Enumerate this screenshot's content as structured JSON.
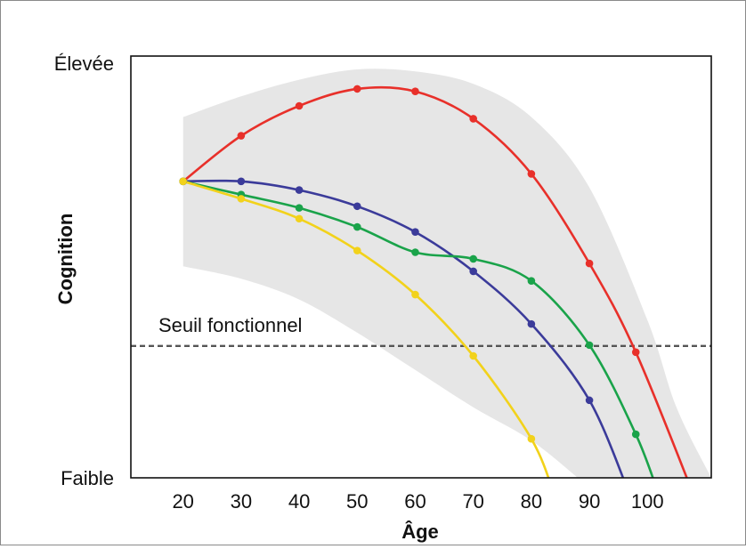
{
  "chart_data": {
    "type": "line",
    "xlabel": "Âge",
    "ylabel": "Cognition",
    "xlim": [
      11,
      111
    ],
    "ylim": [
      0,
      100
    ],
    "x_ticks": [
      20,
      30,
      40,
      50,
      60,
      70,
      80,
      90,
      100
    ],
    "x_tick_labels": [
      "20",
      "30",
      "40",
      "50",
      "60",
      "70",
      "80",
      "90",
      "100"
    ],
    "y_tick_labels": [
      "Élevée",
      "Faible"
    ],
    "y_tick_values": [
      100,
      0
    ],
    "grid": false,
    "legend": "none",
    "threshold": {
      "y": 31.8,
      "label": "Seuil fonctionnel",
      "style": "dashed",
      "color": "#555555"
    },
    "band": {
      "color": "#e6e6e6",
      "upper": [
        [
          20,
          87
        ],
        [
          30,
          92
        ],
        [
          40,
          96
        ],
        [
          50,
          98.5
        ],
        [
          60,
          98
        ],
        [
          70,
          95
        ],
        [
          80,
          87
        ],
        [
          90,
          70
        ],
        [
          100,
          38
        ],
        [
          105,
          17
        ],
        [
          111,
          0
        ]
      ],
      "lower": [
        [
          20,
          51
        ],
        [
          30,
          48
        ],
        [
          40,
          43
        ],
        [
          50,
          35
        ],
        [
          60,
          26
        ],
        [
          70,
          17
        ],
        [
          80,
          9
        ],
        [
          88,
          0
        ]
      ]
    },
    "series": [
      {
        "color": "#e8302a",
        "x": [
          20,
          30,
          40,
          50,
          60,
          70,
          80,
          90,
          98
        ],
        "y": [
          71.5,
          82.5,
          89.7,
          93.8,
          93.2,
          86.6,
          73.3,
          51.7,
          30.3
        ],
        "tail": [
          108,
          0
        ]
      },
      {
        "color": "#3b3b9a",
        "x": [
          20,
          30,
          40,
          50,
          60,
          70,
          80,
          90
        ],
        "y": [
          71.5,
          71.5,
          69.4,
          65.5,
          59.3,
          49.8,
          37.1,
          18.7
        ],
        "tail": [
          97,
          0
        ]
      },
      {
        "color": "#1aa34a",
        "x": [
          20,
          30,
          40,
          50,
          60,
          70,
          80,
          90,
          98
        ],
        "y": [
          71.5,
          68.3,
          65.1,
          60.5,
          54.4,
          52.8,
          47.5,
          32.0,
          10.5
        ],
        "tail": [
          102,
          0
        ]
      },
      {
        "color": "#f2d21b",
        "x": [
          20,
          30,
          40,
          50,
          60,
          70,
          80
        ],
        "y": [
          71.5,
          67.3,
          62.5,
          54.8,
          44.2,
          29.4,
          9.4
        ],
        "tail": [
          84,
          0
        ]
      }
    ]
  }
}
